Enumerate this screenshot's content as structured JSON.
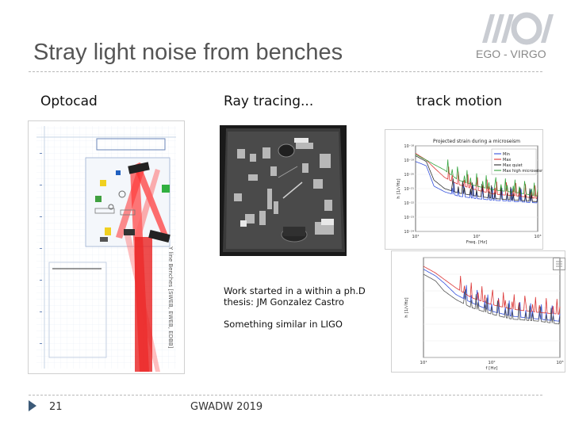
{
  "slide": {
    "title": "Stray light noise from benches",
    "organization": "EGO - VIRGO",
    "page_number": "21",
    "footer_text": "GWADW 2019"
  },
  "columns": {
    "optocad_label": "Optocad",
    "raytracing_label": "Ray tracing...",
    "track_label": "track motion"
  },
  "notes": {
    "line1": "Work started in a within a ph.D",
    "line2": "thesis: JM Gonzalez Castro",
    "line3": "Something similar in LIGO"
  },
  "optocad_figure": {
    "vertical_caption": "Y line Benches [SWEB, EWEB, EDBB]"
  },
  "chart_data": [
    {
      "type": "line",
      "title": "Projected strain during a microseism",
      "xlabel": "Freq. [Hz]",
      "ylabel": "h [1/√Hz]",
      "xscale": "log",
      "yscale": "log",
      "xlim": [
        10,
        1000
      ],
      "ylim": [
        1e-24,
        1e-18
      ],
      "x_ticks": [
        "10¹",
        "10²",
        "10³"
      ],
      "y_ticks": [
        "10⁻¹⁸",
        "10⁻¹⁹",
        "10⁻²⁰",
        "10⁻²¹",
        "10⁻²²",
        "10⁻²³",
        "10⁻²⁴"
      ],
      "legend": [
        "Min",
        "Max",
        "Max quiet",
        "Max high microseism"
      ],
      "legend_position": "top-right",
      "colors": [
        "#1f3fd8",
        "#d82020",
        "#1a1a1a",
        "#1f9a2a"
      ],
      "series": [
        {
          "name": "Min",
          "x": [
            10,
            15,
            20,
            30,
            50,
            100,
            200,
            500,
            1000
          ],
          "y": [
            8e-20,
            4e-20,
            1.5e-21,
            6e-22,
            3e-22,
            2e-22,
            1.5e-22,
            1.2e-22,
            1e-22
          ]
        },
        {
          "name": "Max",
          "x": [
            10,
            15,
            20,
            30,
            50,
            100,
            200,
            500,
            1000
          ],
          "y": [
            3e-19,
            1e-19,
            3e-20,
            6e-21,
            2e-21,
            8e-22,
            4e-22,
            3e-22,
            2e-22
          ]
        },
        {
          "name": "Max quiet",
          "x": [
            10,
            15,
            20,
            30,
            50,
            100,
            200,
            500,
            1000
          ],
          "y": [
            2e-19,
            8e-20,
            4e-21,
            1e-21,
            5e-22,
            3e-22,
            2e-22,
            1.5e-22,
            1.2e-22
          ]
        },
        {
          "name": "Max high microseism",
          "x": [
            10,
            15,
            20,
            30,
            50,
            100,
            200,
            500,
            1000
          ],
          "y": [
            2.5e-19,
            1e-19,
            5e-20,
            2e-20,
            4e-21,
            1.5e-21,
            8e-22,
            5e-22,
            3e-22
          ]
        }
      ]
    },
    {
      "type": "line",
      "title": "",
      "xlabel": "f [Hz]",
      "ylabel": "h [1/√Hz]",
      "xscale": "log",
      "yscale": "log",
      "xlim": [
        10,
        1000
      ],
      "ylim": [
        1e-24,
        1e-18
      ],
      "x_ticks": [
        "10¹",
        "10²",
        "10³"
      ],
      "colors": [
        "#1f3fd8",
        "#d82020",
        "#444444"
      ],
      "series": [
        {
          "name": "blue",
          "x": [
            10,
            15,
            20,
            30,
            50,
            100,
            200,
            500,
            1000
          ],
          "y": [
            2e-19,
            8e-20,
            3e-20,
            6e-21,
            2e-21,
            6e-22,
            3e-22,
            2e-22,
            1.5e-22
          ]
        },
        {
          "name": "red",
          "x": [
            10,
            15,
            20,
            30,
            50,
            100,
            200,
            500,
            1000
          ],
          "y": [
            3e-19,
            1.2e-19,
            5e-20,
            1.5e-20,
            4e-21,
            1.5e-21,
            8e-22,
            5e-22,
            4e-22
          ]
        },
        {
          "name": "black",
          "x": [
            10,
            15,
            20,
            30,
            50,
            100,
            200,
            500,
            1000
          ],
          "y": [
            1e-19,
            4e-20,
            1e-20,
            3e-21,
            1e-21,
            4e-22,
            2e-22,
            1.5e-22,
            1e-22
          ]
        }
      ]
    }
  ]
}
